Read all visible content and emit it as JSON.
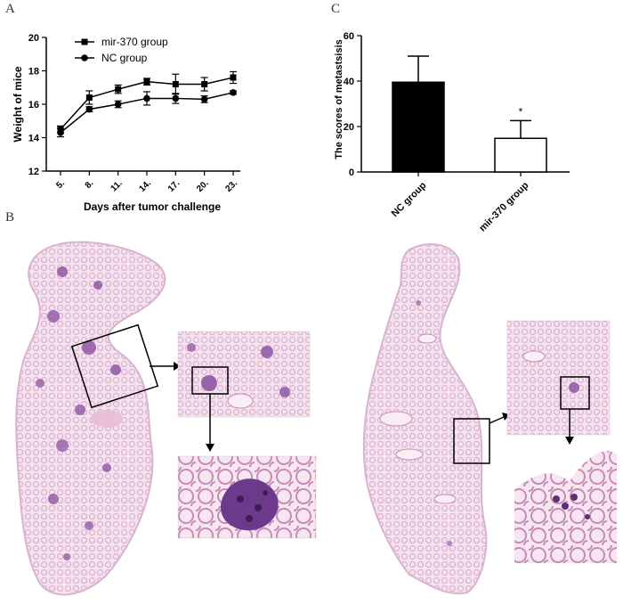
{
  "panels": {
    "a": "A",
    "b": "B",
    "c": "C"
  },
  "chart_data": [
    {
      "type": "line",
      "panel": "A",
      "xlabel": "Days after tumor challenge",
      "ylabel": "Weight of mice",
      "x": [
        "5.",
        "8.",
        "11.",
        "14.",
        "17.",
        "20.",
        "23."
      ],
      "ylim": [
        12,
        20
      ],
      "yticks": [
        12,
        14,
        16,
        18,
        20
      ],
      "legend_position": "top-left",
      "grid": false,
      "series": [
        {
          "name": "mir-370 group",
          "marker": "square",
          "values": [
            14.5,
            16.4,
            16.9,
            17.35,
            17.2,
            17.2,
            17.6
          ],
          "errors": [
            0.2,
            0.4,
            0.25,
            0.2,
            0.6,
            0.4,
            0.35
          ]
        },
        {
          "name": "NC group",
          "marker": "circle",
          "values": [
            14.3,
            15.7,
            16.0,
            16.35,
            16.35,
            16.3,
            16.7
          ],
          "errors": [
            0.25,
            0.15,
            0.2,
            0.4,
            0.3,
            0.2,
            0.1
          ]
        }
      ]
    },
    {
      "type": "bar",
      "panel": "C",
      "ylabel": "The scores of metastsisis",
      "categories": [
        "NC group",
        "mir-370 group"
      ],
      "values": [
        39.5,
        14.8
      ],
      "errors": [
        11.5,
        7.8
      ],
      "fills": [
        "#000000",
        "#ffffff"
      ],
      "annotations": [
        "",
        "*"
      ],
      "ylim": [
        0,
        60
      ],
      "yticks": [
        0,
        20,
        40,
        60
      ],
      "grid": false
    }
  ],
  "histology": {
    "tissue_color": "#e7c4dc",
    "stain_color": "#8a4fa0",
    "dense_color": "#5e2f78"
  }
}
